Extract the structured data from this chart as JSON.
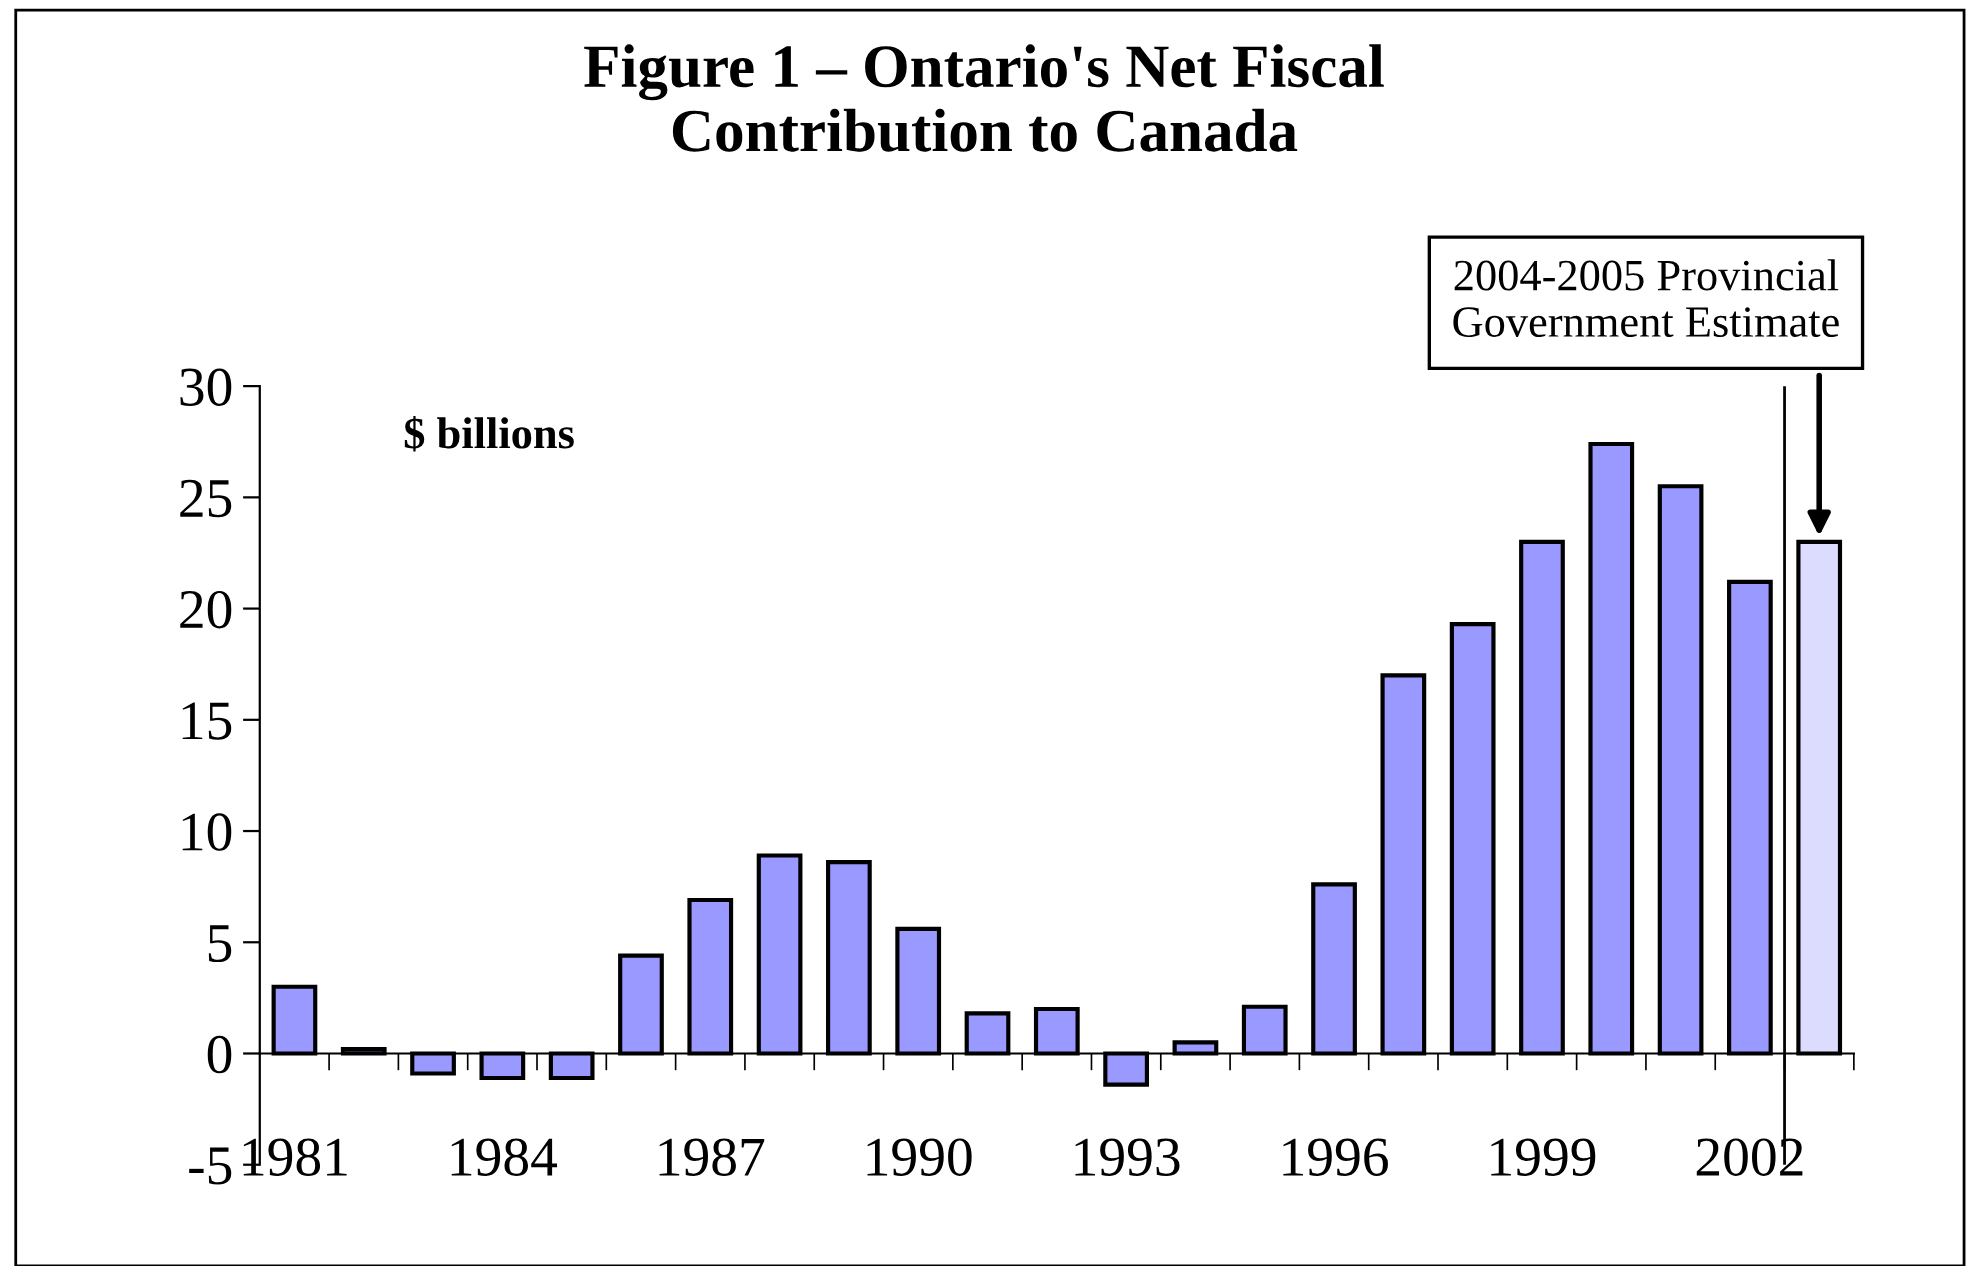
{
  "chart_data": {
    "type": "bar",
    "title": "Figure 1 – Ontario's Net Fiscal\nContribution to Canada",
    "ylabel": "$ billions",
    "x": [
      1981,
      1982,
      1983,
      1984,
      1985,
      1986,
      1987,
      1988,
      1989,
      1990,
      1991,
      1992,
      1993,
      1994,
      1995,
      1996,
      1997,
      1998,
      1999,
      2000,
      2001,
      2002,
      2003
    ],
    "values": [
      3.0,
      0.2,
      -0.9,
      -1.1,
      -1.1,
      4.4,
      6.9,
      8.9,
      8.6,
      5.6,
      1.8,
      2.0,
      -1.4,
      0.5,
      2.1,
      7.6,
      17.0,
      19.3,
      23.0,
      27.4,
      25.5,
      21.2,
      23.0
    ],
    "colors": [
      "#9999ff",
      "#9999ff",
      "#9999ff",
      "#9999ff",
      "#9999ff",
      "#9999ff",
      "#9999ff",
      "#9999ff",
      "#9999ff",
      "#9999ff",
      "#9999ff",
      "#9999ff",
      "#9999ff",
      "#9999ff",
      "#9999ff",
      "#9999ff",
      "#9999ff",
      "#9999ff",
      "#9999ff",
      "#9999ff",
      "#9999ff",
      "#9999ff",
      "#dcdcff"
    ],
    "xlim": [
      1980.5,
      2003.5
    ],
    "xticks": [
      {
        "value": 1981,
        "label": "1981"
      },
      {
        "value": 1984,
        "label": "1984"
      },
      {
        "value": 1987,
        "label": "1987"
      },
      {
        "value": 1990,
        "label": "1990"
      },
      {
        "value": 1993,
        "label": "1993"
      },
      {
        "value": 1996,
        "label": "1996"
      },
      {
        "value": 1999,
        "label": "1999"
      },
      {
        "value": 2002,
        "label": "2002"
      },
      {
        "value": 1981.5,
        "label": null
      },
      {
        "value": 1982.5,
        "label": null
      },
      {
        "value": 1983.5,
        "label": null
      },
      {
        "value": 1984.5,
        "label": null
      },
      {
        "value": 1985.5,
        "label": null
      },
      {
        "value": 1986.5,
        "label": null
      },
      {
        "value": 1987.5,
        "label": null
      },
      {
        "value": 1988.5,
        "label": null
      },
      {
        "value": 1989.5,
        "label": null
      },
      {
        "value": 1990.5,
        "label": null
      },
      {
        "value": 1991.5,
        "label": null
      },
      {
        "value": 1992.5,
        "label": null
      },
      {
        "value": 1993.5,
        "label": null
      },
      {
        "value": 1994.5,
        "label": null
      },
      {
        "value": 1995.5,
        "label": null
      },
      {
        "value": 1996.5,
        "label": null
      },
      {
        "value": 1997.5,
        "label": null
      },
      {
        "value": 1998.5,
        "label": null
      },
      {
        "value": 1999.5,
        "label": null
      },
      {
        "value": 2000.5,
        "label": null
      },
      {
        "value": 2001.5,
        "label": null
      },
      {
        "value": 2002.5,
        "label": null
      },
      {
        "value": 2003.5,
        "label": null
      }
    ],
    "ylim": [
      -5,
      30
    ],
    "yticks": [
      -5,
      0,
      5,
      10,
      15,
      20,
      25,
      30
    ],
    "ref_lines": [
      {
        "axis": "x",
        "value": 2002.5,
        "label": null,
        "color": "#000000"
      }
    ],
    "annotations": [
      {
        "text": "2004-2005 Provincial\nGovernment Estimate",
        "x": 2003,
        "y": 23.0
      }
    ],
    "grid": false,
    "legend": false
  }
}
